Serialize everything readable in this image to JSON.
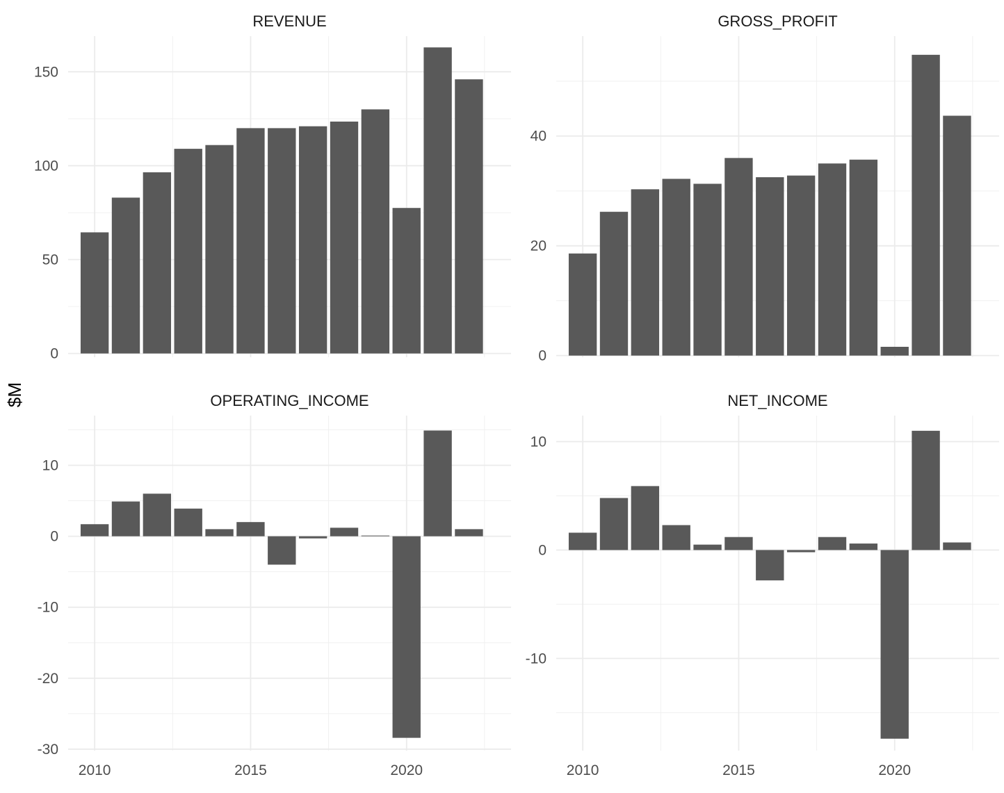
{
  "chart_data": {
    "type": "bar",
    "layout": "facet_wrap 2x2",
    "ylabel": "$M",
    "xlabel": "",
    "x_ticks": [
      2010,
      2015,
      2020
    ],
    "bar_color": "#595959",
    "grid": true,
    "panels": [
      {
        "title": "REVENUE",
        "x": [
          2010,
          2011,
          2012,
          2013,
          2014,
          2015,
          2016,
          2017,
          2018,
          2019,
          2020,
          2021,
          2022
        ],
        "values": [
          64.5,
          83,
          96.5,
          109,
          111,
          120,
          120,
          121,
          123.5,
          130,
          77.5,
          163,
          146
        ],
        "ylim": [
          -2,
          169
        ],
        "y_ticks": [
          0,
          50,
          100,
          150
        ],
        "y_tick_labels": [
          "0",
          "50",
          "100",
          "150"
        ]
      },
      {
        "title": "GROSS_PROFIT",
        "x": [
          2010,
          2011,
          2012,
          2013,
          2014,
          2015,
          2016,
          2017,
          2018,
          2019,
          2020,
          2021,
          2022
        ],
        "values": [
          18.6,
          26.2,
          30.3,
          32.2,
          31.3,
          36.0,
          32.5,
          32.8,
          35.0,
          35.7,
          1.6,
          54.8,
          43.7
        ],
        "ylim": [
          -0.3,
          58.2
        ],
        "y_ticks": [
          0,
          20,
          40
        ],
        "y_tick_labels": [
          "0",
          "20",
          "40"
        ]
      },
      {
        "title": "OPERATING_INCOME",
        "x": [
          2010,
          2011,
          2012,
          2013,
          2014,
          2015,
          2016,
          2017,
          2018,
          2019,
          2020,
          2021,
          2022
        ],
        "values": [
          1.7,
          4.9,
          6.0,
          3.9,
          1.0,
          2.0,
          -4.0,
          -0.3,
          1.2,
          0.1,
          -28.4,
          14.9,
          1.0
        ],
        "ylim": [
          -30.2,
          17.0
        ],
        "y_ticks": [
          -30,
          -20,
          -10,
          0,
          10
        ],
        "y_tick_labels": [
          "-30",
          "-20",
          "-10",
          "0",
          "10"
        ]
      },
      {
        "title": "NET_INCOME",
        "x": [
          2010,
          2011,
          2012,
          2013,
          2014,
          2015,
          2016,
          2017,
          2018,
          2019,
          2020,
          2021,
          2022
        ],
        "values": [
          1.6,
          4.8,
          5.9,
          2.3,
          0.5,
          1.2,
          -2.8,
          -0.2,
          1.2,
          0.6,
          -17.4,
          11.0,
          0.7
        ],
        "ylim": [
          -18.5,
          12.4
        ],
        "y_ticks": [
          -10,
          0,
          10
        ],
        "y_tick_labels": [
          "-10",
          "0",
          "10"
        ]
      }
    ]
  }
}
